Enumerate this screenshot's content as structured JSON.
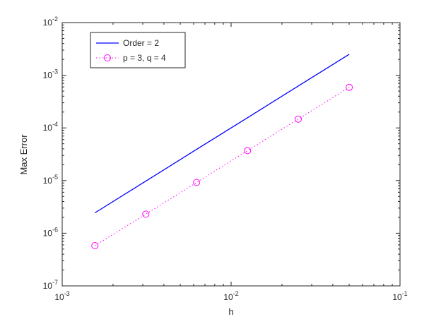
{
  "figure": {
    "background": "#ffffff",
    "axes_color": "#262626"
  },
  "chart_data": {
    "type": "line",
    "title": "",
    "xlabel": "h",
    "ylabel": "Max Error",
    "xscale": "log",
    "yscale": "log",
    "xlim": [
      0.001,
      0.1
    ],
    "ylim": [
      1e-07,
      0.01
    ],
    "grid": false,
    "x_tick_exponents": [
      -3,
      -2,
      -1
    ],
    "y_tick_exponents": [
      -7,
      -6,
      -5,
      -4,
      -3,
      -2
    ],
    "x_tick_labels": [
      "10^-3",
      "10^-2",
      "10^-1"
    ],
    "y_tick_labels": [
      "10^-7",
      "10^-6",
      "10^-5",
      "10^-4",
      "10^-3",
      "10^-2"
    ],
    "legend": {
      "position": "northwest",
      "border": true
    },
    "series": [
      {
        "name": "Order = 2",
        "color": "#0000ff",
        "style": "solid",
        "marker": "none",
        "x": [
          0.0015625,
          0.003125,
          0.00625,
          0.0125,
          0.025,
          0.05
        ],
        "y": [
          2.44e-06,
          9.77e-06,
          3.91e-05,
          0.000156,
          0.000625,
          0.0025
        ]
      },
      {
        "name": "p = 3,  q = 4",
        "color": "#ff00ff",
        "style": "dotted",
        "marker": "circle",
        "x": [
          0.0015625,
          0.003125,
          0.00625,
          0.0125,
          0.025,
          0.05
        ],
        "y": [
          5.8e-07,
          2.3e-06,
          9.2e-06,
          3.7e-05,
          0.000147,
          0.00059
        ]
      }
    ]
  }
}
